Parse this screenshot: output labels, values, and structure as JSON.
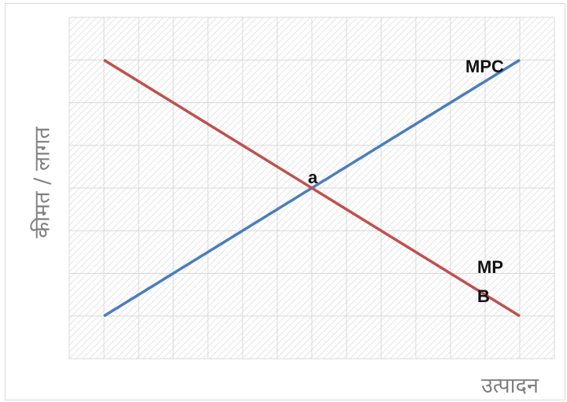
{
  "chart_data": {
    "type": "line",
    "xlabel": "उत्पादन",
    "ylabel": "कीमत / लागत",
    "x": [
      1,
      13
    ],
    "series": [
      {
        "name": "MPC",
        "color": "#4a7ebb",
        "values": [
          1,
          7
        ]
      },
      {
        "name": "MP B",
        "color": "#c0504d",
        "values": [
          7,
          1
        ]
      }
    ],
    "annotations": [
      "a"
    ],
    "xlim": [
      0,
      14
    ],
    "ylim": [
      0,
      8
    ],
    "xticks": [
      0,
      1,
      2,
      3,
      4,
      5,
      6,
      7,
      8,
      9,
      10,
      11,
      12,
      13,
      14
    ],
    "yticks": [
      0,
      1,
      2,
      3,
      4,
      5,
      6,
      7,
      8
    ],
    "grid": true
  }
}
